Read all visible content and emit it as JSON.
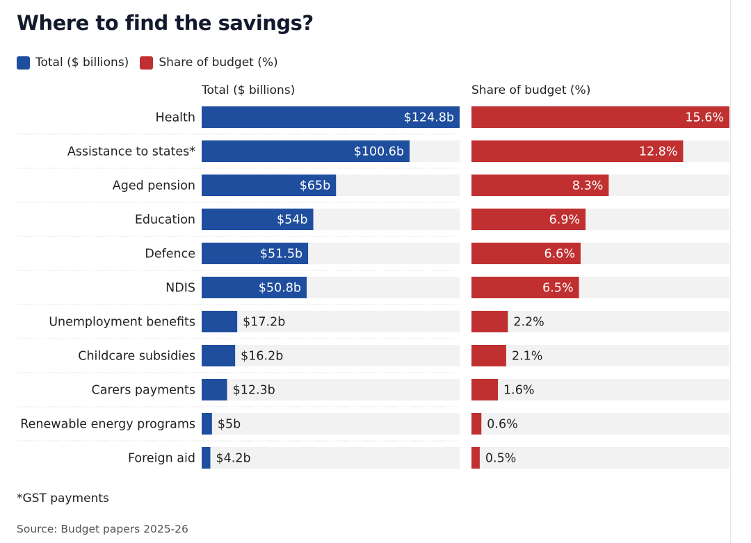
{
  "title": "Where to find the savings?",
  "legend": [
    {
      "label": "Total ($ billions)",
      "color": "#1f4e9e"
    },
    {
      "label": "Share of budget (%)",
      "color": "#c03030"
    }
  ],
  "colors": {
    "track": "#f2f2f2",
    "divider": "#d4d4d4"
  },
  "footnote": "*GST payments",
  "source": "Source: Budget papers 2025-26",
  "chart_data": [
    {
      "type": "bar",
      "orientation": "horizontal",
      "title": "Total ($ billions)",
      "color": "#1f4e9e",
      "categories": [
        "Health",
        "Assistance to states*",
        "Aged pension",
        "Education",
        "Defence",
        "NDIS",
        "Unemployment benefits",
        "Childcare subsidies",
        "Carers payments",
        "Renewable energy programs",
        "Foreign aid"
      ],
      "values": [
        124.8,
        100.6,
        65,
        54,
        51.5,
        50.8,
        17.2,
        16.2,
        12.3,
        5,
        4.2
      ],
      "labels": [
        "$124.8b",
        "$100.6b",
        "$65b",
        "$54b",
        "$51.5b",
        "$50.8b",
        "$17.2b",
        "$16.2b",
        "$12.3b",
        "$5b",
        "$4.2b"
      ],
      "xlim": [
        0,
        124.8
      ],
      "grid": false
    },
    {
      "type": "bar",
      "orientation": "horizontal",
      "title": "Share of budget (%)",
      "color": "#c03030",
      "categories": [
        "Health",
        "Assistance to states*",
        "Aged pension",
        "Education",
        "Defence",
        "NDIS",
        "Unemployment benefits",
        "Childcare subsidies",
        "Carers payments",
        "Renewable energy programs",
        "Foreign aid"
      ],
      "values": [
        15.6,
        12.8,
        8.3,
        6.9,
        6.6,
        6.5,
        2.2,
        2.1,
        1.6,
        0.6,
        0.5
      ],
      "labels": [
        "15.6%",
        "12.8%",
        "8.3%",
        "6.9%",
        "6.6%",
        "6.5%",
        "2.2%",
        "2.1%",
        "1.6%",
        "0.6%",
        "0.5%"
      ],
      "xlim": [
        0,
        15.6
      ],
      "grid": false
    }
  ]
}
